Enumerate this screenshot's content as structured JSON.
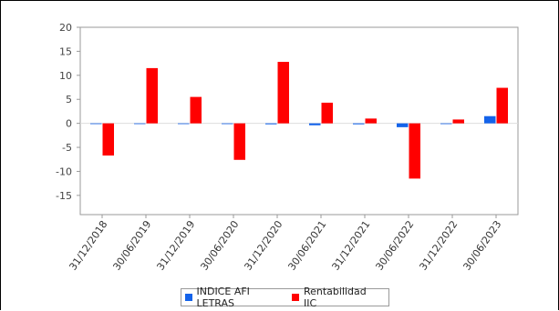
{
  "chart_data": {
    "type": "bar",
    "categories": [
      "31/12/2018",
      "30/06/2019",
      "31/12/2019",
      "30/06/2020",
      "31/12/2020",
      "30/06/2021",
      "31/12/2021",
      "30/06/2022",
      "31/12/2022",
      "30/06/2023"
    ],
    "series": [
      {
        "name": "INDICE AFI LETRAS",
        "color": "#1463ea",
        "values": [
          -0.1,
          -0.1,
          -0.1,
          0.0,
          -0.2,
          -0.4,
          -0.2,
          -0.8,
          0.0,
          1.5
        ]
      },
      {
        "name": "Rentabilidad IIC",
        "color": "#ff0000",
        "values": [
          -6.7,
          11.5,
          5.5,
          -7.6,
          12.8,
          4.3,
          1.0,
          -11.5,
          0.8,
          7.4
        ]
      }
    ],
    "y_ticks": [
      20,
      15,
      10,
      5,
      0,
      -5,
      -10,
      -15
    ],
    "ylim": [
      -19.0,
      20.0
    ],
    "grid": false,
    "legend_position": "bottom-center",
    "title": "",
    "xlabel": "",
    "ylabel": ""
  }
}
